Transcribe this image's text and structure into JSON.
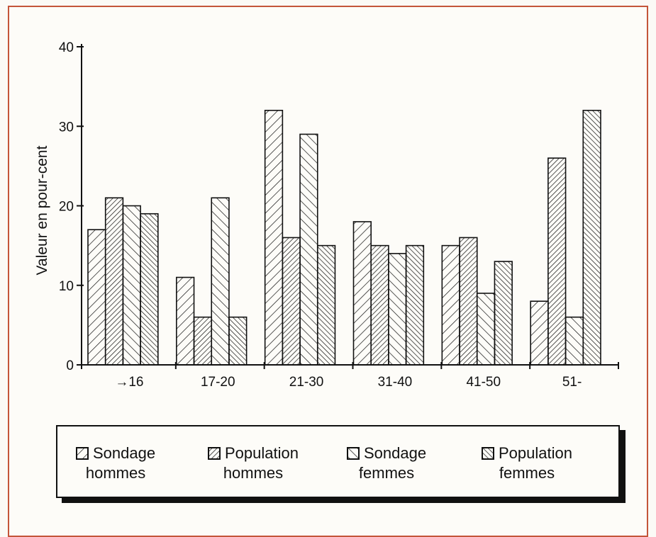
{
  "chart_data": {
    "type": "bar",
    "ylabel": "Valeur en pour-cent",
    "xlabel": "",
    "ylim": [
      0,
      40
    ],
    "yticks": [
      "0",
      "10",
      "20",
      "30",
      "40"
    ],
    "categories": [
      "→16",
      "17-20",
      "21-30",
      "31-40",
      "41-50",
      "51-"
    ],
    "series": [
      {
        "name": "Sondage hommes",
        "name_lines": [
          "Sondage",
          "hommes"
        ],
        "pattern": "back-diagonal",
        "values": [
          17,
          11,
          32,
          18,
          15,
          8
        ]
      },
      {
        "name": "Population hommes",
        "name_lines": [
          "Population",
          "hommes"
        ],
        "pattern": "dense-back-diagonal",
        "values": [
          21,
          6,
          16,
          15,
          16,
          26
        ]
      },
      {
        "name": "Sondage femmes",
        "name_lines": [
          "Sondage",
          "femmes"
        ],
        "pattern": "forward-diagonal",
        "values": [
          20,
          21,
          29,
          14,
          9,
          6
        ]
      },
      {
        "name": "Population femmes",
        "name_lines": [
          "Population",
          "femmes"
        ],
        "pattern": "dense-forward-diagonal",
        "values": [
          19,
          6,
          15,
          15,
          13,
          32
        ]
      }
    ],
    "grid": false,
    "legend_position": "bottom"
  },
  "colors": {
    "ink": "#111111",
    "frame": "#c4553a",
    "paper": "#fdfcf8"
  }
}
